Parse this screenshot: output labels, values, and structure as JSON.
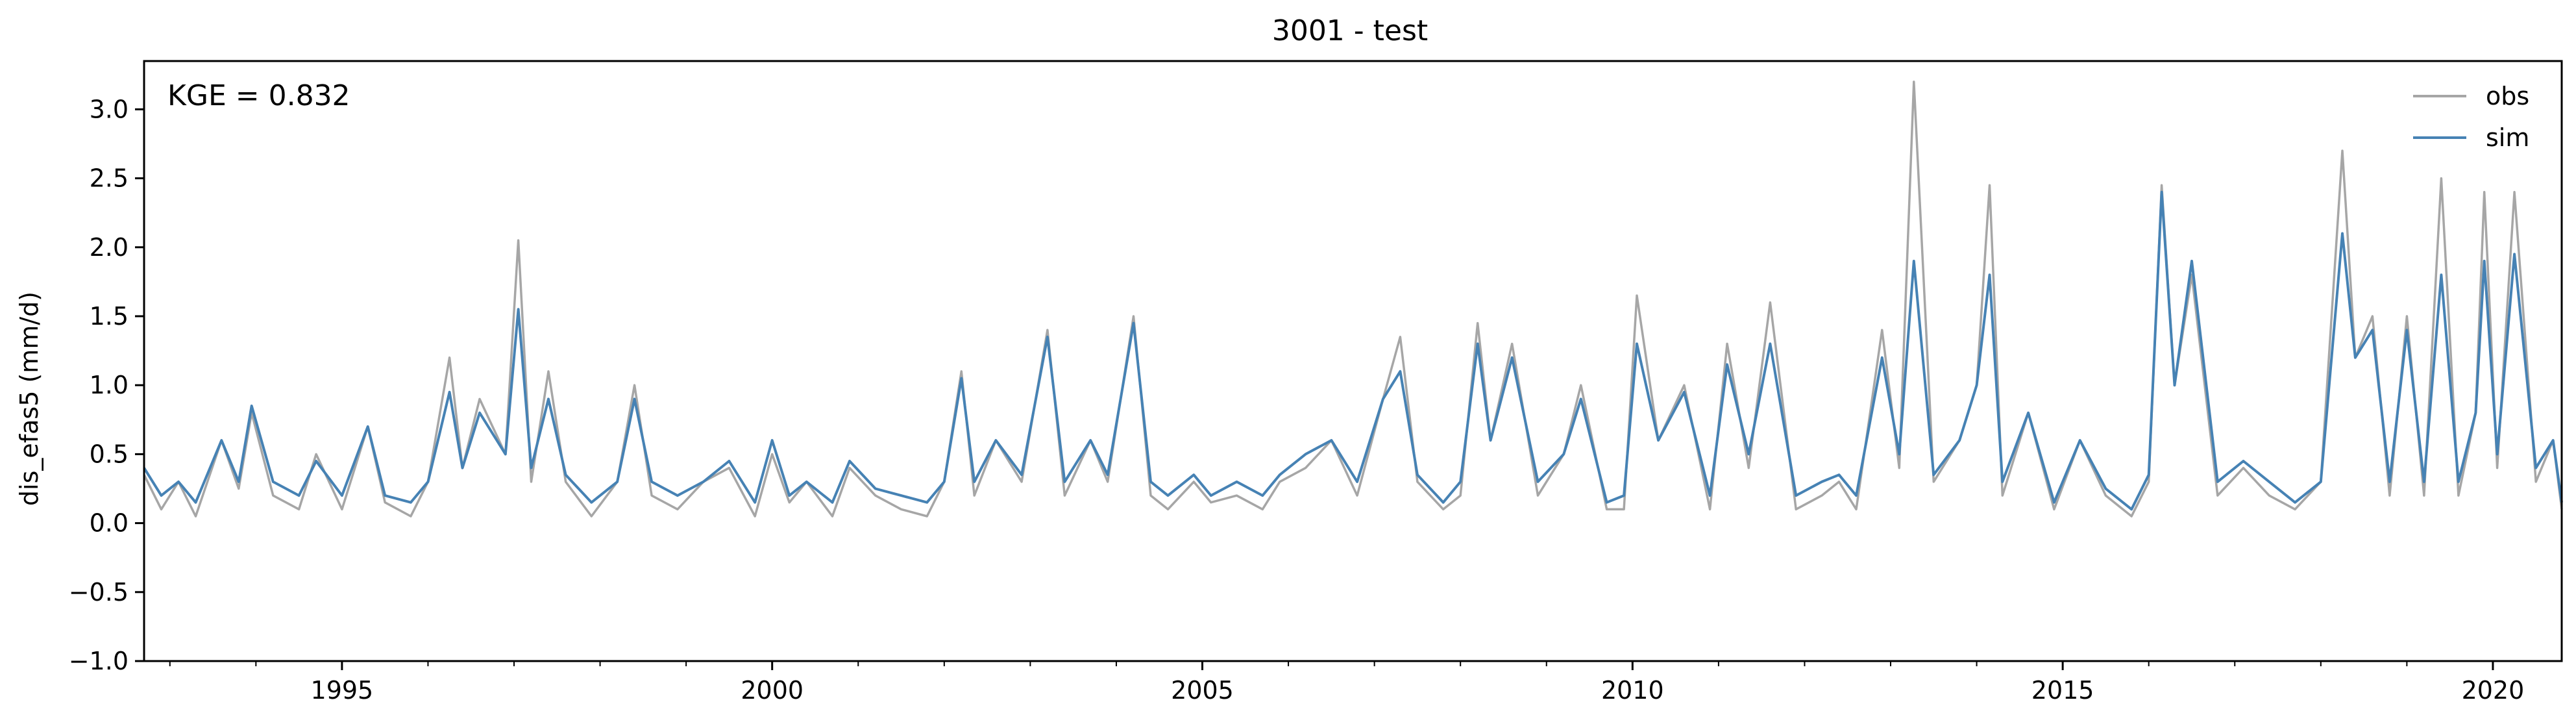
{
  "chart_data": {
    "type": "line",
    "title": "3001 - test",
    "ylabel": "dis_efas5 (mm/d)",
    "xlabel": "",
    "annotation": "KGE = 0.832",
    "xlim": [
      1992.7,
      2020.8
    ],
    "ylim": [
      -1.0,
      3.35
    ],
    "x_ticks": [
      {
        "value": 1995,
        "label": "1995"
      },
      {
        "value": 2000,
        "label": "2000"
      },
      {
        "value": 2005,
        "label": "2005"
      },
      {
        "value": 2010,
        "label": "2010"
      },
      {
        "value": 2015,
        "label": "2015"
      },
      {
        "value": 2020,
        "label": "2020"
      }
    ],
    "y_ticks": [
      {
        "value": -1.0,
        "label": "−1.0"
      },
      {
        "value": -0.5,
        "label": "−0.5"
      },
      {
        "value": 0.0,
        "label": "0.0"
      },
      {
        "value": 0.5,
        "label": "0.5"
      },
      {
        "value": 1.0,
        "label": "1.0"
      },
      {
        "value": 1.5,
        "label": "1.5"
      },
      {
        "value": 2.0,
        "label": "2.0"
      },
      {
        "value": 2.5,
        "label": "2.5"
      },
      {
        "value": 3.0,
        "label": "3.0"
      }
    ],
    "grid": false,
    "legend_position": "top-right",
    "series": [
      {
        "name": "obs",
        "color": "#a6a6a6",
        "x": [
          1992.7,
          1992.9,
          1993.1,
          1993.3,
          1993.6,
          1993.8,
          1993.95,
          1994.2,
          1994.5,
          1994.7,
          1995.0,
          1995.3,
          1995.5,
          1995.8,
          1996.0,
          1996.25,
          1996.4,
          1996.6,
          1996.9,
          1997.05,
          1997.2,
          1997.4,
          1997.6,
          1997.9,
          1998.2,
          1998.4,
          1998.6,
          1998.9,
          1999.2,
          1999.5,
          1999.8,
          2000.0,
          2000.2,
          2000.4,
          2000.7,
          2000.9,
          2001.2,
          2001.5,
          2001.8,
          2002.0,
          2002.2,
          2002.35,
          2002.6,
          2002.9,
          2003.2,
          2003.4,
          2003.7,
          2003.9,
          2004.2,
          2004.4,
          2004.6,
          2004.9,
          2005.1,
          2005.4,
          2005.7,
          2005.9,
          2006.2,
          2006.5,
          2006.8,
          2007.1,
          2007.3,
          2007.5,
          2007.8,
          2008.0,
          2008.2,
          2008.35,
          2008.6,
          2008.9,
          2009.2,
          2009.4,
          2009.7,
          2009.9,
          2010.05,
          2010.3,
          2010.6,
          2010.9,
          2011.1,
          2011.35,
          2011.6,
          2011.9,
          2012.2,
          2012.4,
          2012.6,
          2012.9,
          2013.1,
          2013.27,
          2013.5,
          2013.8,
          2014.0,
          2014.15,
          2014.3,
          2014.6,
          2014.9,
          2015.2,
          2015.5,
          2015.8,
          2016.0,
          2016.15,
          2016.3,
          2016.5,
          2016.8,
          2017.1,
          2017.4,
          2017.7,
          2018.0,
          2018.25,
          2018.4,
          2018.6,
          2018.8,
          2019.0,
          2019.2,
          2019.4,
          2019.6,
          2019.8,
          2019.9,
          2020.05,
          2020.25,
          2020.5,
          2020.7,
          2020.8
        ],
        "values": [
          0.35,
          0.1,
          0.3,
          0.05,
          0.6,
          0.25,
          0.8,
          0.2,
          0.1,
          0.5,
          0.1,
          0.7,
          0.15,
          0.05,
          0.3,
          1.2,
          0.4,
          0.9,
          0.5,
          2.05,
          0.3,
          1.1,
          0.3,
          0.05,
          0.3,
          1.0,
          0.2,
          0.1,
          0.3,
          0.4,
          0.05,
          0.5,
          0.15,
          0.3,
          0.05,
          0.4,
          0.2,
          0.1,
          0.05,
          0.3,
          1.1,
          0.2,
          0.6,
          0.3,
          1.4,
          0.2,
          0.6,
          0.3,
          1.5,
          0.2,
          0.1,
          0.3,
          0.15,
          0.2,
          0.1,
          0.3,
          0.4,
          0.6,
          0.2,
          0.9,
          1.35,
          0.3,
          0.1,
          0.2,
          1.45,
          0.6,
          1.3,
          0.2,
          0.5,
          1.0,
          0.1,
          0.1,
          1.65,
          0.6,
          1.0,
          0.1,
          1.3,
          0.4,
          1.6,
          0.1,
          0.2,
          0.3,
          0.1,
          1.4,
          0.4,
          3.2,
          0.3,
          0.6,
          1.0,
          2.45,
          0.2,
          0.8,
          0.1,
          0.6,
          0.2,
          0.05,
          0.3,
          2.45,
          1.0,
          1.8,
          0.2,
          0.4,
          0.2,
          0.1,
          0.3,
          2.7,
          1.2,
          1.5,
          0.2,
          1.5,
          0.2,
          2.5,
          0.2,
          0.8,
          2.4,
          0.4,
          2.4,
          0.3,
          0.6,
          0.1
        ]
      },
      {
        "name": "sim",
        "color": "#4682b4",
        "x": [
          1992.7,
          1992.9,
          1993.1,
          1993.3,
          1993.6,
          1993.8,
          1993.95,
          1994.2,
          1994.5,
          1994.7,
          1995.0,
          1995.3,
          1995.5,
          1995.8,
          1996.0,
          1996.25,
          1996.4,
          1996.6,
          1996.9,
          1997.05,
          1997.2,
          1997.4,
          1997.6,
          1997.9,
          1998.2,
          1998.4,
          1998.6,
          1998.9,
          1999.2,
          1999.5,
          1999.8,
          2000.0,
          2000.2,
          2000.4,
          2000.7,
          2000.9,
          2001.2,
          2001.5,
          2001.8,
          2002.0,
          2002.2,
          2002.35,
          2002.6,
          2002.9,
          2003.2,
          2003.4,
          2003.7,
          2003.9,
          2004.2,
          2004.4,
          2004.6,
          2004.9,
          2005.1,
          2005.4,
          2005.7,
          2005.9,
          2006.2,
          2006.5,
          2006.8,
          2007.1,
          2007.3,
          2007.5,
          2007.8,
          2008.0,
          2008.2,
          2008.35,
          2008.6,
          2008.9,
          2009.2,
          2009.4,
          2009.7,
          2009.9,
          2010.05,
          2010.3,
          2010.6,
          2010.9,
          2011.1,
          2011.35,
          2011.6,
          2011.9,
          2012.2,
          2012.4,
          2012.6,
          2012.9,
          2013.1,
          2013.27,
          2013.5,
          2013.8,
          2014.0,
          2014.15,
          2014.3,
          2014.6,
          2014.9,
          2015.2,
          2015.5,
          2015.8,
          2016.0,
          2016.15,
          2016.3,
          2016.5,
          2016.8,
          2017.1,
          2017.4,
          2017.7,
          2018.0,
          2018.25,
          2018.4,
          2018.6,
          2018.8,
          2019.0,
          2019.2,
          2019.4,
          2019.6,
          2019.8,
          2019.9,
          2020.05,
          2020.25,
          2020.5,
          2020.7,
          2020.8
        ],
        "values": [
          0.4,
          0.2,
          0.3,
          0.15,
          0.6,
          0.3,
          0.85,
          0.3,
          0.2,
          0.45,
          0.2,
          0.7,
          0.2,
          0.15,
          0.3,
          0.95,
          0.4,
          0.8,
          0.5,
          1.55,
          0.4,
          0.9,
          0.35,
          0.15,
          0.3,
          0.9,
          0.3,
          0.2,
          0.3,
          0.45,
          0.15,
          0.6,
          0.2,
          0.3,
          0.15,
          0.45,
          0.25,
          0.2,
          0.15,
          0.3,
          1.05,
          0.3,
          0.6,
          0.35,
          1.35,
          0.3,
          0.6,
          0.35,
          1.45,
          0.3,
          0.2,
          0.35,
          0.2,
          0.3,
          0.2,
          0.35,
          0.5,
          0.6,
          0.3,
          0.9,
          1.1,
          0.35,
          0.15,
          0.3,
          1.3,
          0.6,
          1.2,
          0.3,
          0.5,
          0.9,
          0.15,
          0.2,
          1.3,
          0.6,
          0.95,
          0.2,
          1.15,
          0.5,
          1.3,
          0.2,
          0.3,
          0.35,
          0.2,
          1.2,
          0.5,
          1.9,
          0.35,
          0.6,
          1.0,
          1.8,
          0.3,
          0.8,
          0.15,
          0.6,
          0.25,
          0.1,
          0.35,
          2.4,
          1.0,
          1.9,
          0.3,
          0.45,
          0.3,
          0.15,
          0.3,
          2.1,
          1.2,
          1.4,
          0.3,
          1.4,
          0.3,
          1.8,
          0.3,
          0.8,
          1.9,
          0.5,
          1.95,
          0.4,
          0.6,
          0.15
        ]
      }
    ]
  }
}
